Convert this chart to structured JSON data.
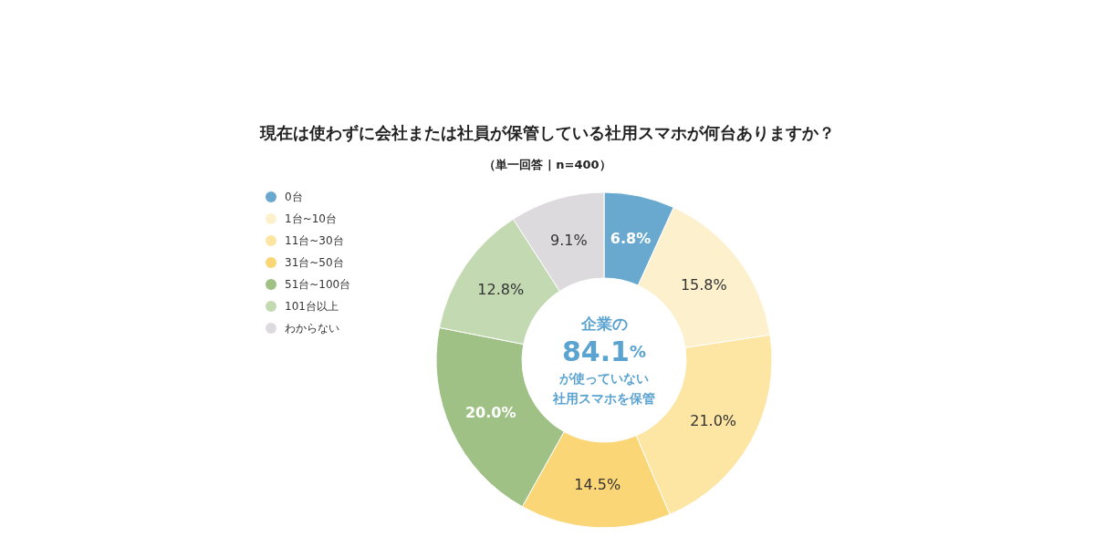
{
  "chart_data": {
    "type": "donut",
    "title": "現在は使わずに会社または社員が保管している社用スマホが何台ありますか？",
    "subtitle": "（単一回答 | n=400）",
    "categories": [
      "0台",
      "1台~10台",
      "11台~30台",
      "31台~50台",
      "51台~100台",
      "101台以上",
      "わからない"
    ],
    "values": [
      6.8,
      15.8,
      21.0,
      14.5,
      20.0,
      12.8,
      9.1
    ],
    "value_labels": [
      "6.8%",
      "15.8%",
      "21.0%",
      "14.5%",
      "20.0%",
      "12.8%",
      "9.1%"
    ],
    "colors": [
      "#6aa9cf",
      "#fdf0cc",
      "#fde5a3",
      "#fbd677",
      "#9fc185",
      "#c3d9b1",
      "#dcdadd"
    ],
    "annotations": [
      "企業の",
      "84.1%",
      "が使っていない",
      "社用スマホを保管"
    ],
    "legend": "top left"
  }
}
